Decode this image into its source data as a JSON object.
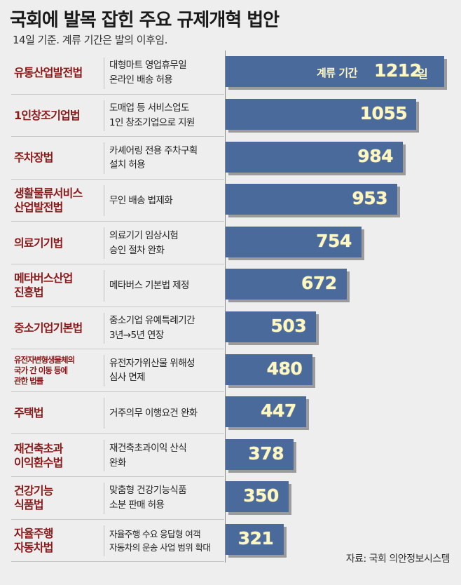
{
  "title": "국회에 발목 잡힌 주요 규제개혁 법안",
  "subtitle": "14일 기준. 계류 기간은 발의 이후임.",
  "source": "자료: 국회 의안정보시스템",
  "colors": {
    "bar": "#4a6a9c",
    "law_text": "#8b1a1a",
    "value_text": "#fff7c0",
    "background": "#eeeeee"
  },
  "chart_data": {
    "type": "bar",
    "orientation": "horizontal",
    "value_prefix_first": "계류 기간",
    "value_unit_first": "일",
    "categories": [
      "유통산업발전법",
      "1인창조기업법",
      "주차장법",
      "생활물류서비스\n산업발전법",
      "의료기기법",
      "메타버스산업\n진흥법",
      "중소기업기본법",
      "유전자변형생물체의\n국가 간 이동 등에\n관한 법률",
      "주택법",
      "재건축초과\n이익환수법",
      "건강기능\n식품법",
      "자율주행\n자동차법"
    ],
    "descriptions": [
      "대형마트 영업휴무일\n온라인 배송 허용",
      "도매업 등 서비스업도\n1인 창조기업으로 지원",
      "카셰어링 전용 주차구획\n설치 허용",
      "무인 배송 법제화",
      "의료기기 임상시험\n승인 절차 완화",
      "메타버스 기본법 제정",
      "중소기업 유예특례기간\n3년→5년 연장",
      "유전자가위산물 위해성\n심사 면제",
      "거주의무 이행요건 완화",
      "재건축초과이익 산식\n완화",
      "맞춤형 건강기능식품\n소분 판매 허용",
      "자율주행 수요 응답형 여객\n자동차의 운송 사업 범위 확대"
    ],
    "values": [
      1212,
      1055,
      984,
      953,
      754,
      672,
      503,
      480,
      447,
      378,
      350,
      321
    ]
  }
}
